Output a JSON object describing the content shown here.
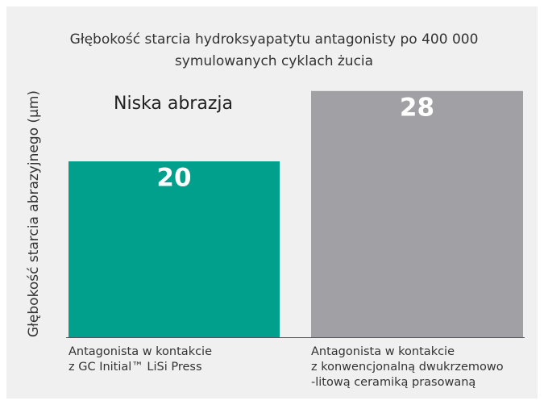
{
  "chart_data": {
    "type": "bar",
    "title": "Głębokość starcia hydroksyapatytu antagonisty po 400 000 symulowanych cyklach żucia",
    "y_label": "Głębokość starcia abrazyjnego (µm)",
    "annotation": "Niska abrazja",
    "categories": [
      "Antagonista w kontakcie\nz GC Initial™  LiSi Press",
      "Antagonista w kontakcie\nz konwencjonalną dwukrzemowo\n-litową ceramiką prasowaną"
    ],
    "values": [
      20,
      28
    ],
    "colors": [
      "#00a08c",
      "#a1a1a5"
    ]
  }
}
